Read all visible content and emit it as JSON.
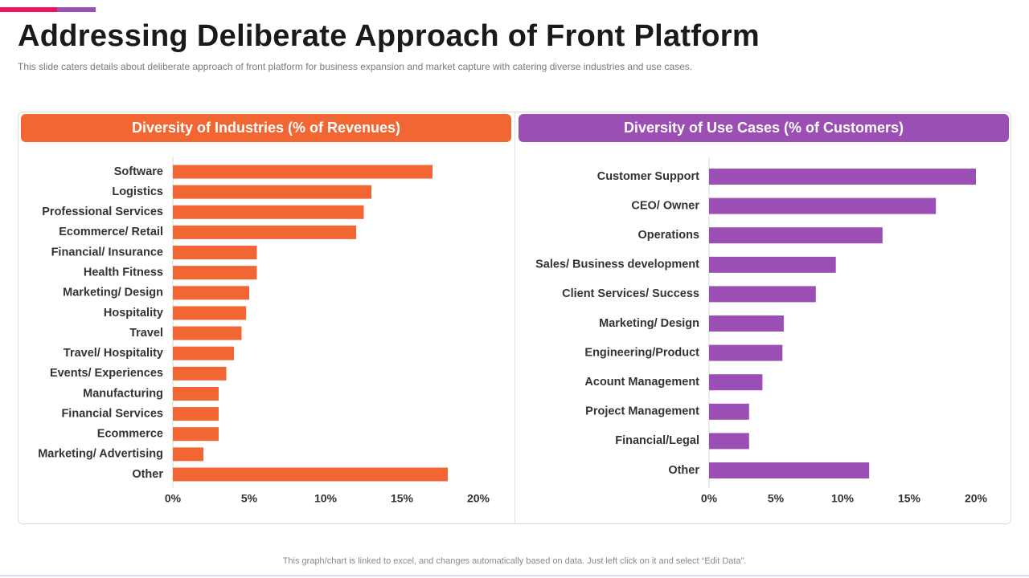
{
  "slide": {
    "title": "Addressing Deliberate Approach of Front Platform",
    "subtitle": "This slide caters details about deliberate approach of front platform for business expansion and market capture with catering diverse industries and use cases.",
    "footer": "This graph/chart is linked to excel, and changes automatically based on data. Just left click on it and select “Edit Data”.",
    "colors": {
      "accent_pink": "#e8175d",
      "orange": "#f26633",
      "purple": "#9b4fb5"
    }
  },
  "chart_data": [
    {
      "type": "bar",
      "orientation": "horizontal",
      "title": "Diversity of Industries (% of Revenues)",
      "color": "#f26633",
      "categories": [
        "Software",
        "Logistics",
        "Professional Services",
        "Ecommerce/ Retail",
        "Financial/ Insurance",
        "Health Fitness",
        "Marketing/ Design",
        "Hospitality",
        "Travel",
        "Travel/ Hospitality",
        "Events/ Experiences",
        "Manufacturing",
        "Financial Services",
        "Ecommerce",
        "Marketing/ Advertising",
        "Other"
      ],
      "values": [
        17,
        13,
        12.5,
        12,
        5.5,
        5.5,
        5,
        4.8,
        4.5,
        4,
        3.5,
        3,
        3,
        3,
        2,
        18
      ],
      "xlim": [
        0,
        20
      ],
      "xticks": [
        0,
        5,
        10,
        15,
        20
      ],
      "xtick_labels": [
        "0%",
        "5%",
        "10%",
        "15%",
        "20%"
      ],
      "grid": false
    },
    {
      "type": "bar",
      "orientation": "horizontal",
      "title": "Diversity of Use Cases (% of Customers)",
      "color": "#9b4fb5",
      "categories": [
        "Customer Support",
        "CEO/ Owner",
        "Operations",
        "Sales/ Business development",
        "Client Services/ Success",
        "Marketing/ Design",
        "Engineering/Product",
        "Acount Management",
        "Project Management",
        "Financial/Legal",
        "Other"
      ],
      "values": [
        20,
        17,
        13,
        9.5,
        8,
        5.6,
        5.5,
        4,
        3,
        3,
        12
      ],
      "xlim": [
        0,
        20
      ],
      "xticks": [
        0,
        5,
        10,
        15,
        20
      ],
      "xtick_labels": [
        "0%",
        "5%",
        "10%",
        "15%",
        "20%"
      ],
      "grid": false
    }
  ]
}
